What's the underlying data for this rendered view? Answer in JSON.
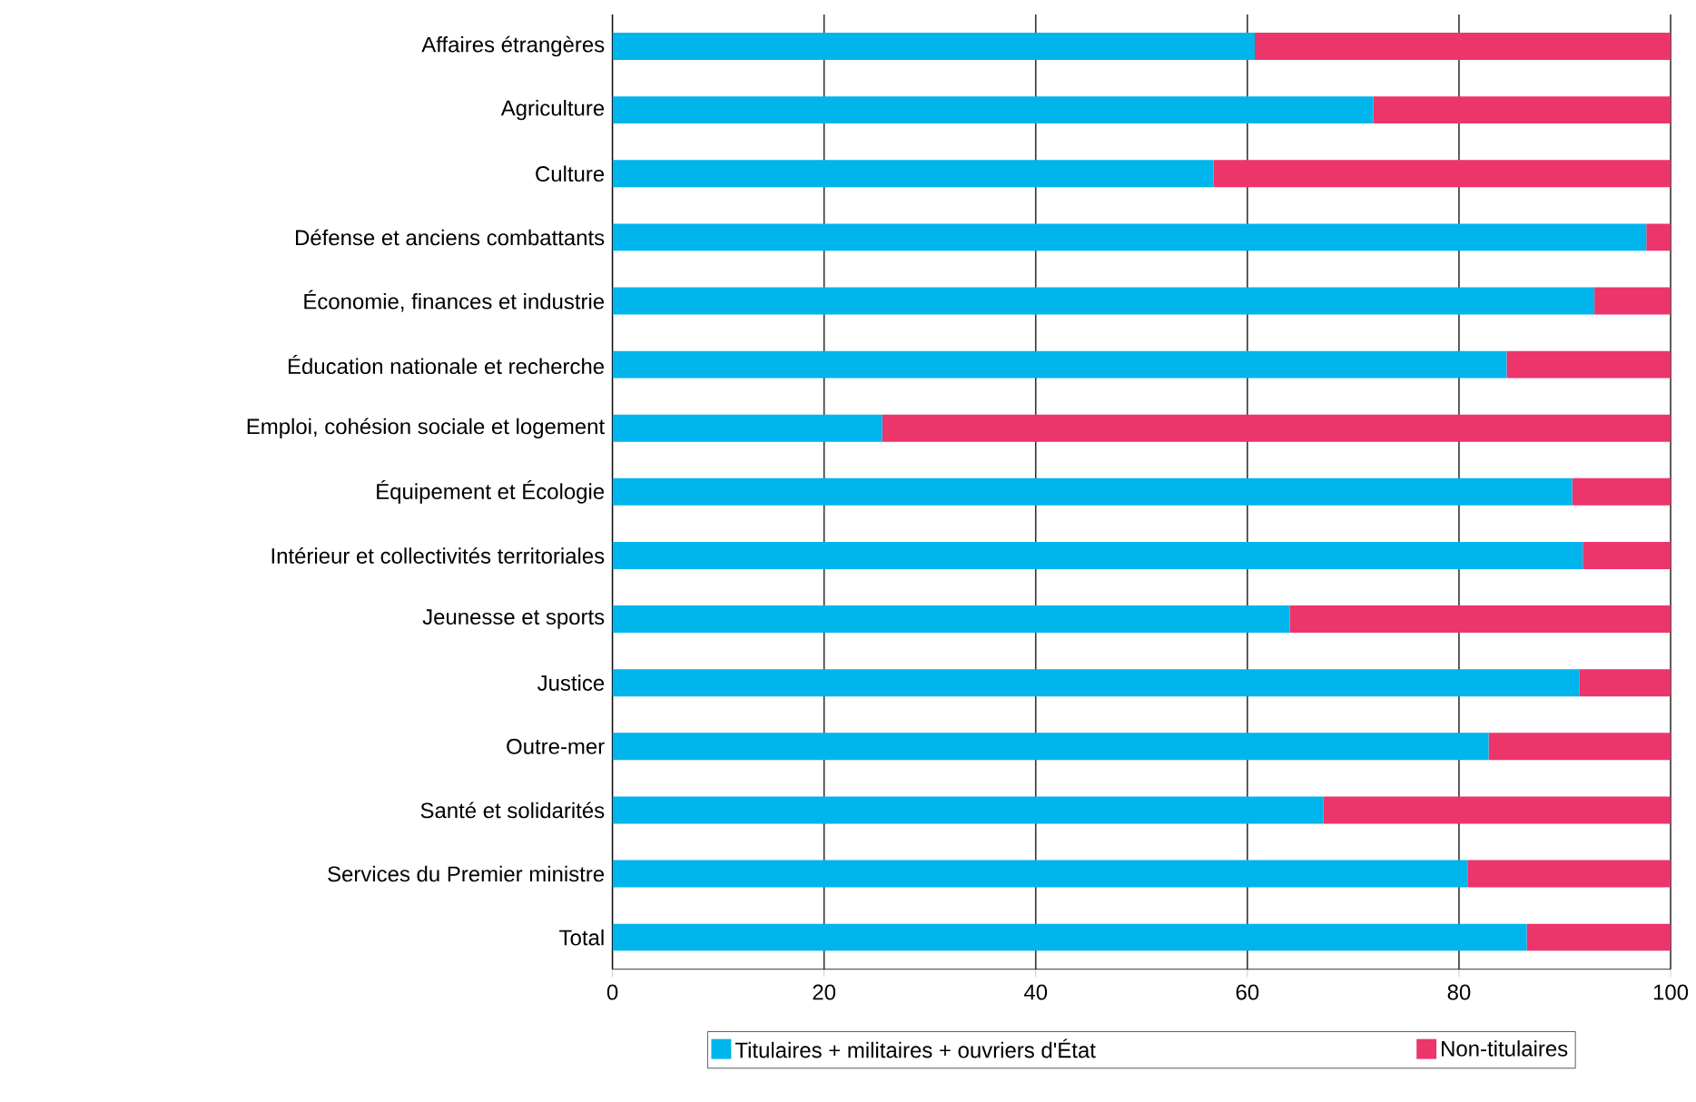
{
  "chart_data": {
    "type": "bar",
    "orientation": "horizontal",
    "stacked": true,
    "categories": [
      "Affaires étrangères",
      "Agriculture",
      "Culture",
      "Défense et anciens combattants",
      "Économie, finances et industrie",
      "Éducation nationale et recherche",
      "Emploi, cohésion sociale et logement",
      "Équipement et Écologie",
      "Intérieur et collectivités territoriales",
      "Jeunesse et sports",
      "Justice",
      "Outre-mer",
      "Santé et solidarités",
      "Services du Premier ministre",
      "Total"
    ],
    "series": [
      {
        "name": "Titulaires + militaires + ouvriers d'État",
        "color": "#00b4ec",
        "values": [
          60.7,
          71.9,
          56.8,
          97.7,
          92.8,
          84.5,
          25.5,
          90.7,
          91.7,
          64.0,
          91.4,
          82.8,
          67.2,
          80.8,
          86.4
        ]
      },
      {
        "name": "Non-titulaires",
        "color": "#eb356b",
        "values": [
          39.3,
          28.1,
          43.2,
          2.3,
          7.2,
          15.5,
          74.5,
          9.3,
          8.3,
          36.0,
          8.6,
          17.2,
          32.8,
          19.2,
          13.6
        ]
      }
    ],
    "xlim": [
      0,
      100
    ],
    "xticks": [
      0,
      20,
      40,
      60,
      80,
      100
    ],
    "grid": "x",
    "legend": "bottom"
  }
}
